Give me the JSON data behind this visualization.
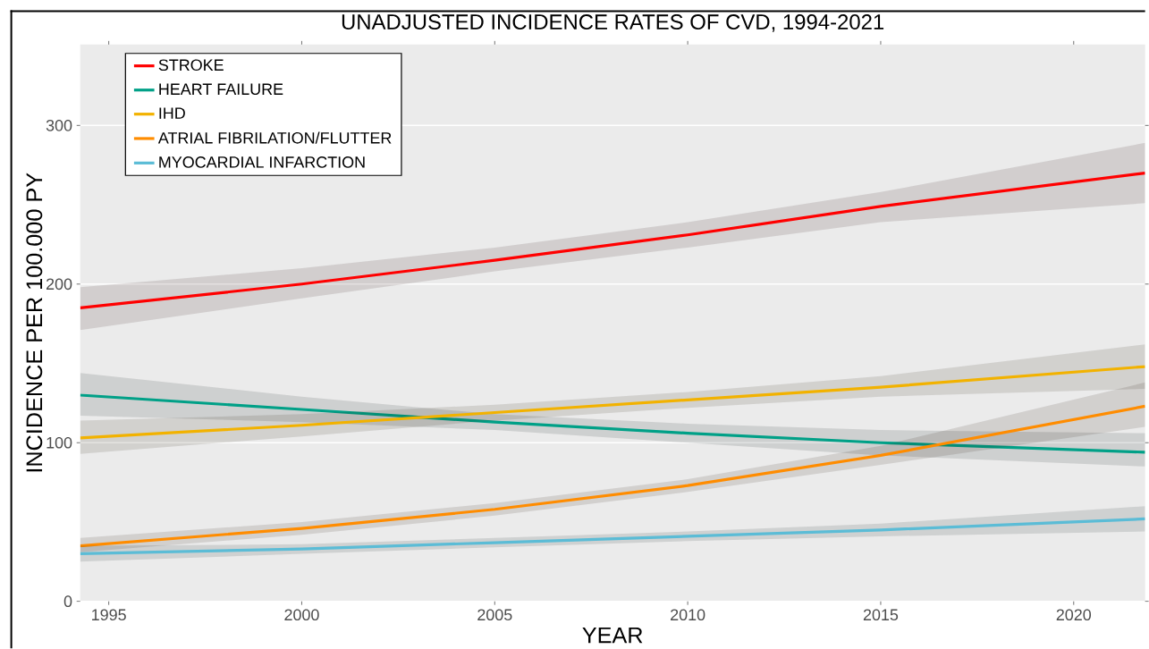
{
  "chart_data": {
    "type": "line",
    "title": "UNADJUSTED INCIDENCE RATES OF CVD, 1994-2021",
    "xlabel": "YEAR",
    "ylabel": "INCIDENCE PER 100.000 PY",
    "x": [
      1994.26,
      2000,
      2005,
      2010,
      2015,
      2021.85
    ],
    "series": [
      {
        "name": "STROKE",
        "color": "#ff0000",
        "values": [
          185,
          200,
          215,
          231,
          249,
          270
        ],
        "lower": [
          171,
          191,
          208,
          223,
          239,
          251
        ],
        "upper": [
          198,
          210,
          223,
          239,
          258,
          289
        ]
      },
      {
        "name": "HEART FAILURE",
        "color": "#00a087",
        "values": [
          130,
          121,
          113,
          106,
          100,
          94
        ],
        "lower": [
          117,
          113,
          108,
          100,
          92,
          85
        ],
        "upper": [
          144,
          129,
          118,
          112,
          108,
          106
        ]
      },
      {
        "name": "IHD",
        "color": "#f2b200",
        "values": [
          103,
          111,
          119,
          127,
          135,
          148
        ],
        "lower": [
          93,
          104,
          114,
          122,
          129,
          134
        ],
        "upper": [
          114,
          118,
          124,
          132,
          142,
          162
        ]
      },
      {
        "name": "ATRIAL FIBRILATION/FLUTTER",
        "color": "#ff8c00",
        "values": [
          35,
          46,
          58,
          73,
          92,
          123
        ],
        "lower": [
          31,
          42,
          54,
          69,
          86,
          110
        ],
        "upper": [
          40,
          50,
          62,
          77,
          98,
          138
        ]
      },
      {
        "name": "MYOCARDIAL INFARCTION",
        "color": "#5bbcd6",
        "values": [
          30,
          33,
          37,
          41,
          45,
          52
        ],
        "lower": [
          25,
          30,
          34,
          38,
          41,
          44
        ],
        "upper": [
          35,
          36,
          40,
          44,
          49,
          60
        ]
      }
    ],
    "xlim": [
      1994.26,
      2021.85
    ],
    "ylim": [
      0,
      351
    ],
    "xticks": [
      1995,
      2000,
      2005,
      2010,
      2015,
      2020
    ],
    "yticks": [
      0,
      100,
      200,
      300
    ],
    "grid": "y",
    "legend": "top left"
  }
}
